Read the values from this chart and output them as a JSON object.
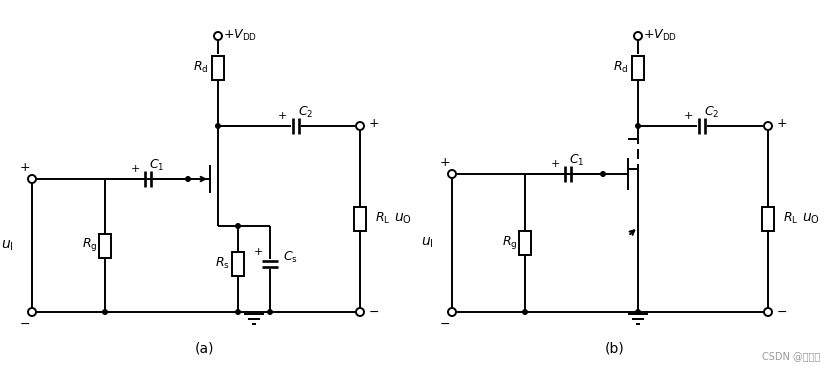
{
  "bg_color": "#ffffff",
  "line_color": "#000000",
  "lw": 1.4,
  "label_a": "(a)",
  "label_b": "(b)",
  "watermark": "CSDN @妖兽咀"
}
